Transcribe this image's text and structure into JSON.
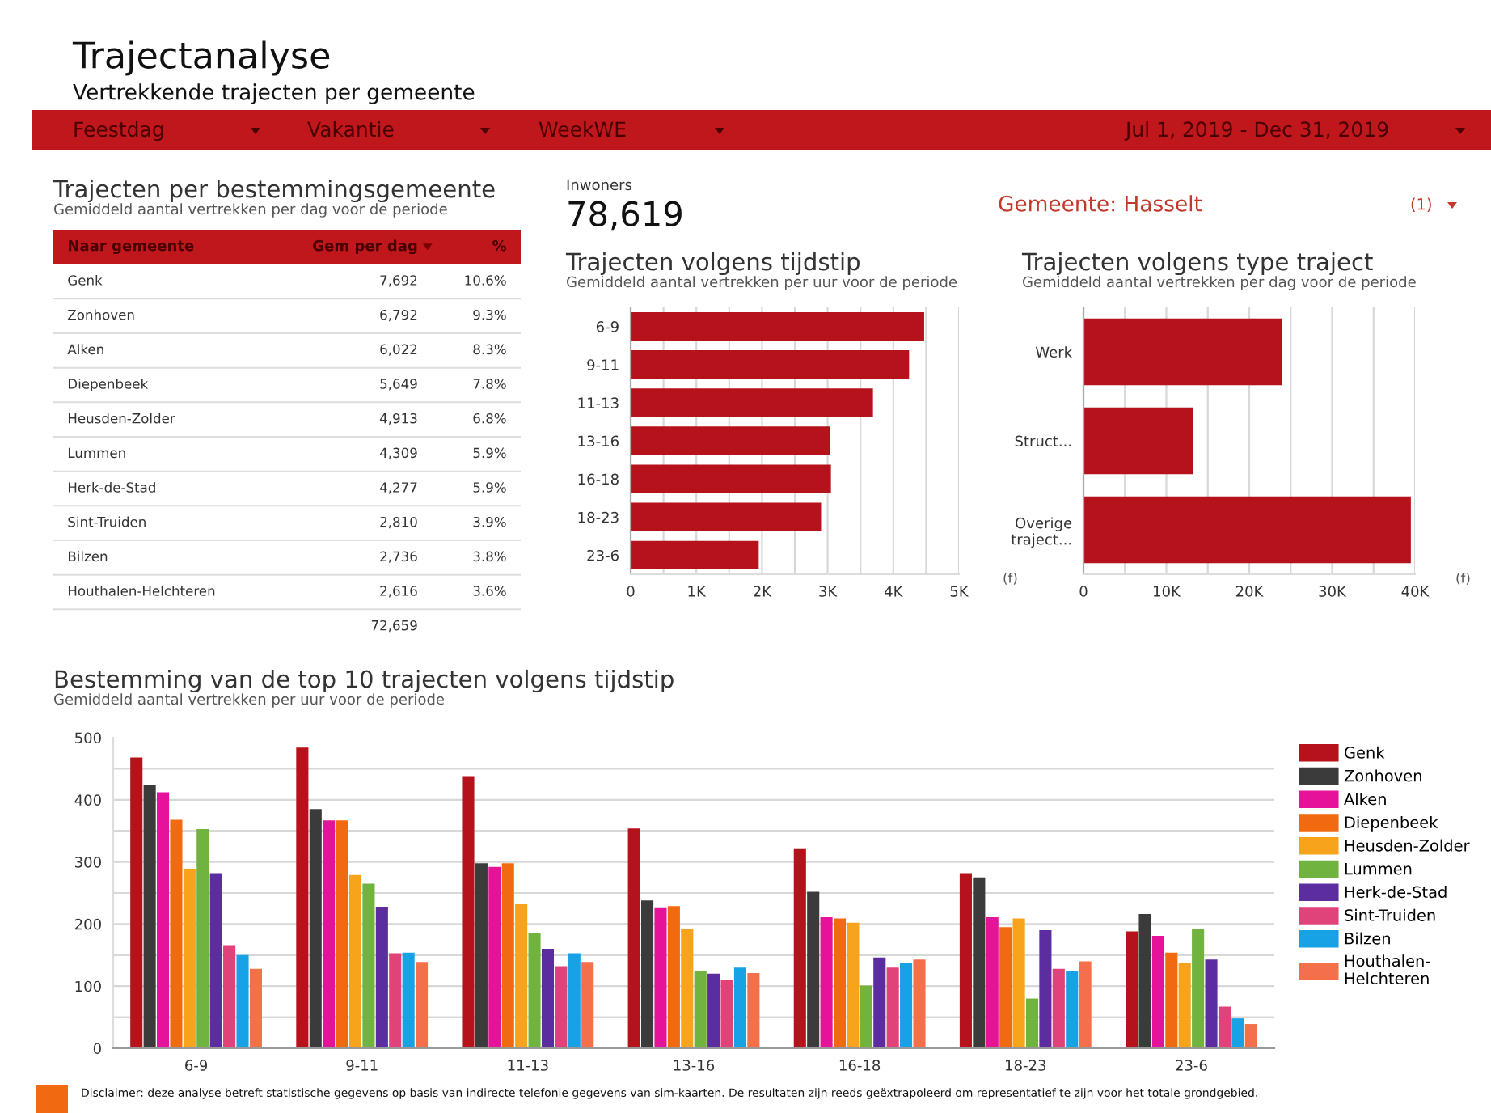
{
  "chart_data": [
    {
      "type": "other",
      "title": "Trajectanalyse",
      "subtitle": "Vertrekkende trajecten per gemeente",
      "annotations": [
        "Feestdag",
        "Vakantie",
        "WeekWE",
        "Jul 1, 2019 - Dec 31, 2019",
        "Inwoners",
        "78,619",
        "Gemeente: Hasselt",
        "(1)",
        "Disclaimer: deze analyse betreft statistische gegevens op basis van indirecte telefonie gegevens van sim-kaarten. De resultaten zijn reeds geëxtrapoleerd om representatief te zijn voor het totale grondgebied."
      ]
    },
    {
      "type": "other",
      "title": "Trajecten per bestemmingsgemeente",
      "subtitle": "Gemiddeld aantal vertrekken per dag voor de periode",
      "xlabel": "Naar gemeente",
      "categories": [
        "Genk",
        "Zonhoven",
        "Alken",
        "Diepenbeek",
        "Heusden-Zolder",
        "Lummen",
        "Herk-de-Stad",
        "Sint-Truiden",
        "Bilzen",
        "Houthalen-Helchteren"
      ],
      "series": [
        {
          "name": "Gem per dag",
          "values": [
            7692,
            6792,
            6022,
            5649,
            4913,
            4309,
            4277,
            2810,
            2736,
            2616
          ],
          "value_labels": [
            "7,692",
            "6,792",
            "6,022",
            "5,649",
            "4,913",
            "4,309",
            "4,277",
            "2,810",
            "2,736",
            "2,616"
          ]
        },
        {
          "name": "%",
          "values": [
            10.6,
            9.3,
            8.3,
            7.8,
            6.8,
            5.9,
            5.9,
            3.9,
            3.8,
            3.6
          ],
          "value_labels": [
            "10.6%",
            "9.3%",
            "8.3%",
            "7.8%",
            "6.8%",
            "5.9%",
            "5.9%",
            "3.9%",
            "3.8%",
            "3.6%"
          ]
        }
      ],
      "totals": [
        "72,659"
      ]
    },
    {
      "type": "bar",
      "orientation": "horizontal",
      "title": "Trajecten volgens tijdstip",
      "subtitle": "Gemiddeld aantal vertrekken per uur voor de periode",
      "categories": [
        "6-9",
        "9-11",
        "11-13",
        "13-16",
        "16-18",
        "18-23",
        "23-6"
      ],
      "values": [
        4470,
        4240,
        3690,
        3030,
        3050,
        2900,
        1950
      ],
      "color": "#b5121b",
      "xlim": [
        0,
        5000
      ],
      "xticks": [
        0,
        {
          "value": 500,
          "label": null
        },
        {
          "value": 1000,
          "label": "1K"
        },
        {
          "value": 1500,
          "label": null
        },
        {
          "value": 2000,
          "label": "2K"
        },
        {
          "value": 2500,
          "label": null
        },
        {
          "value": 3000,
          "label": "3K"
        },
        {
          "value": 3500,
          "label": null
        },
        {
          "value": 4000,
          "label": "4K"
        },
        {
          "value": 4500,
          "label": null
        },
        {
          "value": 5000,
          "label": "5K"
        }
      ],
      "grid": "x",
      "annotations": [
        "(f)"
      ]
    },
    {
      "type": "bar",
      "orientation": "horizontal",
      "title": "Trajecten volgens type traject",
      "subtitle": "Gemiddeld aantal vertrekken per dag voor de periode",
      "categories": [
        "Werk",
        "Struct...",
        "Overige traject..."
      ],
      "values": [
        24000,
        13200,
        39500
      ],
      "color": "#b5121b",
      "xlim": [
        0,
        40000
      ],
      "xticks": [
        0,
        {
          "value": 5000,
          "label": null
        },
        {
          "value": 10000,
          "label": "10K"
        },
        {
          "value": 15000,
          "label": null
        },
        {
          "value": 20000,
          "label": "20K"
        },
        {
          "value": 25000,
          "label": null
        },
        {
          "value": 30000,
          "label": "30K"
        },
        {
          "value": 35000,
          "label": null
        },
        {
          "value": 40000,
          "label": "40K"
        }
      ],
      "grid": "x",
      "annotations": [
        "(f)"
      ]
    },
    {
      "type": "bar",
      "title": "Bestemming van de top 10 trajecten volgens tijdstip",
      "subtitle": "Gemiddeld aantal vertrekken per uur voor de periode",
      "categories": [
        "6-9",
        "9-11",
        "11-13",
        "13-16",
        "16-18",
        "18-23",
        "23-6"
      ],
      "series": [
        {
          "name": "Genk",
          "color": "#b5121b",
          "values": [
            468,
            484,
            438,
            354,
            322,
            282,
            188
          ]
        },
        {
          "name": "Zonhoven",
          "color": "#3b3b3b",
          "values": [
            424,
            385,
            298,
            238,
            252,
            275,
            216
          ]
        },
        {
          "name": "Alken",
          "color": "#e5129a",
          "values": [
            412,
            367,
            292,
            227,
            211,
            211,
            181
          ]
        },
        {
          "name": "Diepenbeek",
          "color": "#f26a10",
          "values": [
            368,
            367,
            298,
            229,
            209,
            195,
            154
          ]
        },
        {
          "name": "Heusden-Zolder",
          "color": "#f8a31c",
          "values": [
            289,
            279,
            233,
            192,
            202,
            209,
            137
          ]
        },
        {
          "name": "Lummen",
          "color": "#71b33f",
          "values": [
            353,
            265,
            185,
            125,
            101,
            80,
            192
          ]
        },
        {
          "name": "Herk-de-Stad",
          "color": "#5b2d9e",
          "values": [
            282,
            228,
            160,
            120,
            146,
            190,
            143
          ]
        },
        {
          "name": "Sint-Truiden",
          "color": "#e0427a",
          "values": [
            166,
            153,
            132,
            110,
            130,
            128,
            67
          ]
        },
        {
          "name": "Bilzen",
          "color": "#17a2e6",
          "values": [
            150,
            154,
            153,
            130,
            137,
            125,
            48
          ]
        },
        {
          "name": "Houthalen-Helchteren",
          "color": "#f4704a",
          "values": [
            128,
            139,
            139,
            121,
            143,
            140,
            39
          ]
        }
      ],
      "ylim": [
        0,
        500
      ],
      "yticks": [
        0,
        {
          "value": 50,
          "label": null
        },
        100,
        {
          "value": 150,
          "label": null
        },
        200,
        {
          "value": 250,
          "label": null
        },
        300,
        {
          "value": 350,
          "label": null
        },
        400,
        {
          "value": 450,
          "label": null
        },
        500
      ],
      "grid": "y",
      "legend": "right"
    }
  ]
}
